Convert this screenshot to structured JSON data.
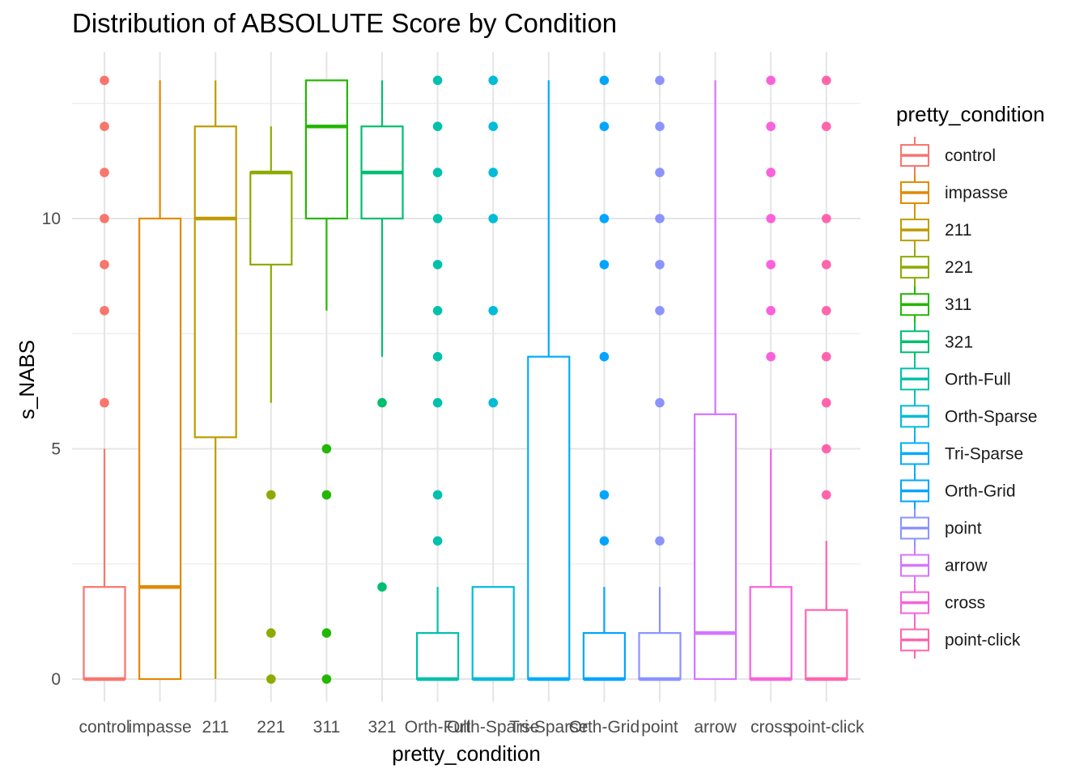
{
  "chart_data": {
    "type": "boxplot",
    "title": "Distribution of ABSOLUTE Score by Condition",
    "xlabel": "pretty_condition",
    "ylabel": "s_NABS",
    "ylim": [
      -0.5,
      13.5
    ],
    "yticks": [
      0,
      5,
      10
    ],
    "legend_title": "pretty_condition",
    "legend_position": "right",
    "grid": true,
    "categories": [
      "control",
      "impasse",
      "211",
      "221",
      "311",
      "321",
      "Orth-Full",
      "Orth-Sparse",
      "Tri-Sparse",
      "Orth-Grid",
      "point",
      "arrow",
      "cross",
      "point-click"
    ],
    "series": [
      {
        "name": "control",
        "color": "#F8766D",
        "box": {
          "min": 0,
          "q1": 0,
          "median": 0,
          "q3": 2,
          "max": 5
        },
        "outliers": [
          6,
          8,
          9,
          10,
          11,
          12,
          13
        ]
      },
      {
        "name": "impasse",
        "color": "#E18A00",
        "box": {
          "min": 0,
          "q1": 0,
          "median": 2,
          "q3": 10,
          "max": 13
        },
        "outliers": []
      },
      {
        "name": "211",
        "color": "#BE9C00",
        "box": {
          "min": 0,
          "q1": 5.25,
          "median": 10,
          "q3": 12,
          "max": 13
        },
        "outliers": []
      },
      {
        "name": "221",
        "color": "#8CAB00",
        "box": {
          "min": 6,
          "q1": 9,
          "median": 11,
          "q3": 11,
          "max": 12
        },
        "outliers": [
          0,
          1,
          4
        ]
      },
      {
        "name": "311",
        "color": "#24B700",
        "box": {
          "min": 8,
          "q1": 10,
          "median": 12,
          "q3": 13,
          "max": 13
        },
        "outliers": [
          0,
          1,
          4,
          5
        ]
      },
      {
        "name": "321",
        "color": "#00BE70",
        "box": {
          "min": 7,
          "q1": 10,
          "median": 11,
          "q3": 12,
          "max": 13
        },
        "outliers": [
          2,
          6
        ]
      },
      {
        "name": "Orth-Full",
        "color": "#00C1AB",
        "box": {
          "min": 0,
          "q1": 0,
          "median": 0,
          "q3": 1,
          "max": 2
        },
        "outliers": [
          3,
          4,
          6,
          7,
          8,
          9,
          10,
          11,
          12,
          13
        ]
      },
      {
        "name": "Orth-Sparse",
        "color": "#00BBDA",
        "box": {
          "min": 0,
          "q1": 0,
          "median": 0,
          "q3": 2,
          "max": 2
        },
        "outliers": [
          6,
          8,
          10,
          11,
          12,
          13
        ]
      },
      {
        "name": "Tri-Sparse",
        "color": "#00ACFC",
        "box": {
          "min": 0,
          "q1": 0,
          "median": 0,
          "q3": 7,
          "max": 13
        },
        "outliers": []
      },
      {
        "name": "Orth-Grid",
        "color": "#00A5FF",
        "box": {
          "min": 0,
          "q1": 0,
          "median": 0,
          "q3": 1,
          "max": 2
        },
        "outliers": [
          3,
          4,
          7,
          9,
          10,
          12,
          13
        ]
      },
      {
        "name": "point",
        "color": "#8B93FF",
        "box": {
          "min": 0,
          "q1": 0,
          "median": 0,
          "q3": 1,
          "max": 2
        },
        "outliers": [
          3,
          6,
          8,
          9,
          10,
          11,
          12,
          13
        ]
      },
      {
        "name": "arrow",
        "color": "#D575FE",
        "box": {
          "min": 0,
          "q1": 0,
          "median": 1,
          "q3": 5.75,
          "max": 13
        },
        "outliers": []
      },
      {
        "name": "cross",
        "color": "#F962DD",
        "box": {
          "min": 0,
          "q1": 0,
          "median": 0,
          "q3": 2,
          "max": 5
        },
        "outliers": [
          7,
          8,
          9,
          10,
          11,
          12,
          13
        ]
      },
      {
        "name": "point-click",
        "color": "#FF65AC",
        "box": {
          "min": 0,
          "q1": 0,
          "median": 0,
          "q3": 1.5,
          "max": 3
        },
        "outliers": [
          4,
          5,
          6,
          7,
          8,
          9,
          10,
          12,
          13
        ]
      }
    ]
  }
}
